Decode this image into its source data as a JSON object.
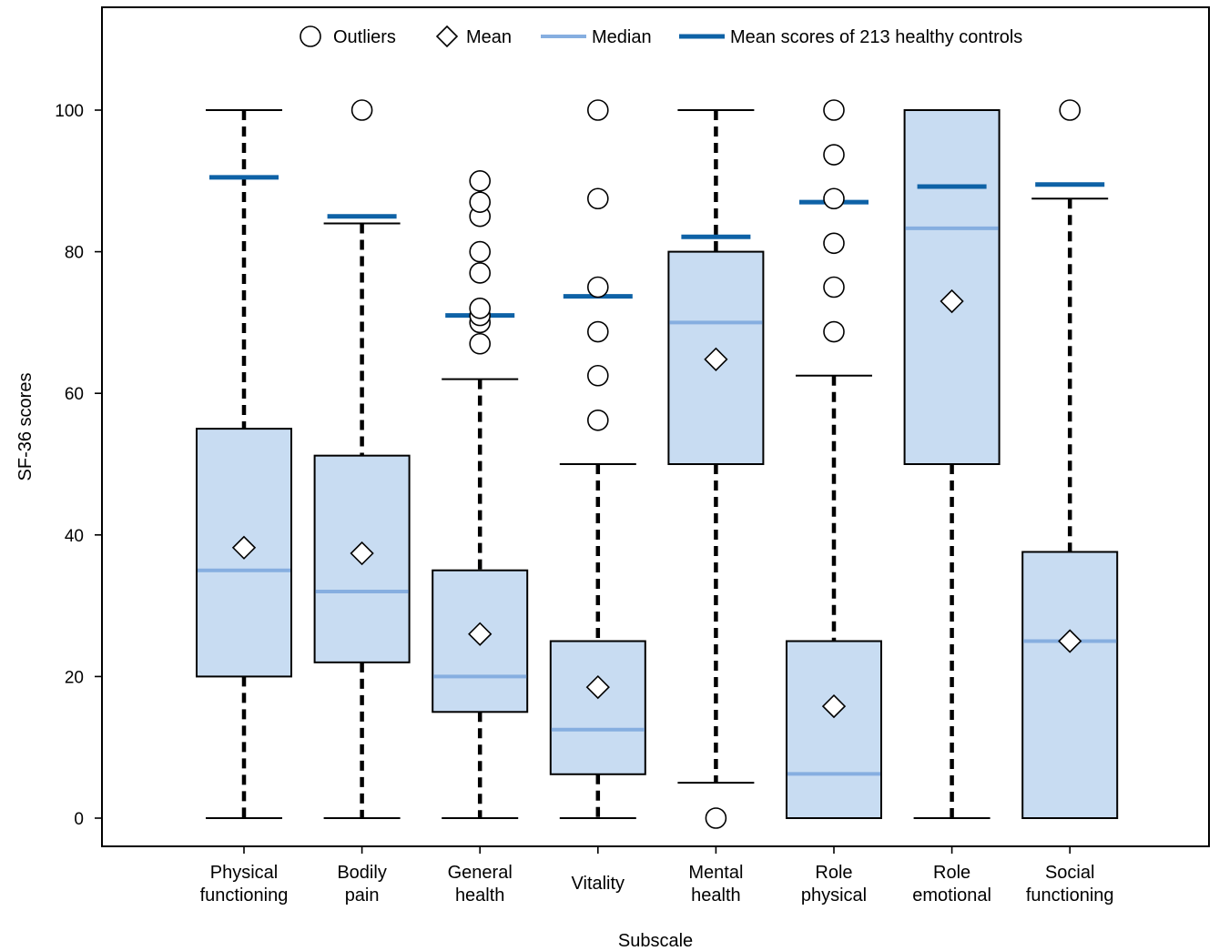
{
  "chart_data": {
    "type": "box",
    "title": "",
    "xlabel": "Subscale",
    "ylabel": "SF-36 scores",
    "ylim": [
      0,
      100
    ],
    "yticks": [
      0,
      20,
      40,
      60,
      80,
      100
    ],
    "grid": false,
    "legend_position": "top",
    "legend": [
      {
        "key": "outliers",
        "label": "Outliers",
        "symbol": "circle"
      },
      {
        "key": "mean",
        "label": "Mean",
        "symbol": "diamond"
      },
      {
        "key": "median",
        "label": "Median",
        "symbol": "line-light"
      },
      {
        "key": "controls",
        "label": "Mean scores of 213 healthy controls",
        "symbol": "line-dark"
      }
    ],
    "colors": {
      "box_fill": "#c8dcf2",
      "median": "#86aee0",
      "controls": "#0e62a6",
      "outline": "#000000"
    },
    "categories": [
      {
        "name": "Physical functioning",
        "label_lines": [
          "Physical",
          "functioning"
        ],
        "whisker_low": 0,
        "q1": 20,
        "median": 35,
        "q3": 55,
        "whisker_high": 100,
        "mean": 38.2,
        "control_mean": 90.5,
        "outliers": []
      },
      {
        "name": "Bodily pain",
        "label_lines": [
          "Bodily",
          "pain"
        ],
        "whisker_low": 0,
        "q1": 22,
        "median": 32,
        "q3": 51.2,
        "whisker_high": 84,
        "mean": 37.4,
        "control_mean": 85,
        "outliers": [
          100
        ]
      },
      {
        "name": "General health",
        "label_lines": [
          "General",
          "health"
        ],
        "whisker_low": 0,
        "q1": 15,
        "median": 20,
        "q3": 35,
        "whisker_high": 62,
        "mean": 26,
        "control_mean": 71,
        "outliers": [
          67,
          70,
          71,
          72,
          77,
          80,
          85,
          87,
          90
        ]
      },
      {
        "name": "Vitality",
        "label_lines": [
          "Vitality"
        ],
        "whisker_low": 0,
        "q1": 6.2,
        "median": 12.5,
        "q3": 25,
        "whisker_high": 50,
        "mean": 18.5,
        "control_mean": 73.7,
        "outliers": [
          56.2,
          62.5,
          68.7,
          75,
          87.5,
          100
        ]
      },
      {
        "name": "Mental health",
        "label_lines": [
          "Mental",
          "health"
        ],
        "whisker_low": 5,
        "q1": 50,
        "median": 70,
        "q3": 80,
        "whisker_high": 100,
        "mean": 64.8,
        "control_mean": 82.1,
        "outliers": [
          0
        ]
      },
      {
        "name": "Role physical",
        "label_lines": [
          "Role",
          "physical"
        ],
        "whisker_low": 0,
        "q1": 0,
        "median": 6.25,
        "q3": 25,
        "whisker_high": 62.5,
        "mean": 15.8,
        "control_mean": 87,
        "outliers": [
          68.7,
          75,
          81.2,
          87.5,
          93.7,
          100
        ]
      },
      {
        "name": "Role emotional",
        "label_lines": [
          "Role",
          "emotional"
        ],
        "whisker_low": 0,
        "q1": 50,
        "median": 83.3,
        "q3": 100,
        "whisker_high": 100,
        "mean": 73,
        "control_mean": 89.2,
        "outliers": []
      },
      {
        "name": "Social functioning",
        "label_lines": [
          "Social",
          "functioning"
        ],
        "whisker_low": 0,
        "q1": 0,
        "median": 25,
        "q3": 37.6,
        "whisker_high": 87.5,
        "mean": 25,
        "control_mean": 89.5,
        "outliers": [
          100
        ]
      }
    ]
  }
}
